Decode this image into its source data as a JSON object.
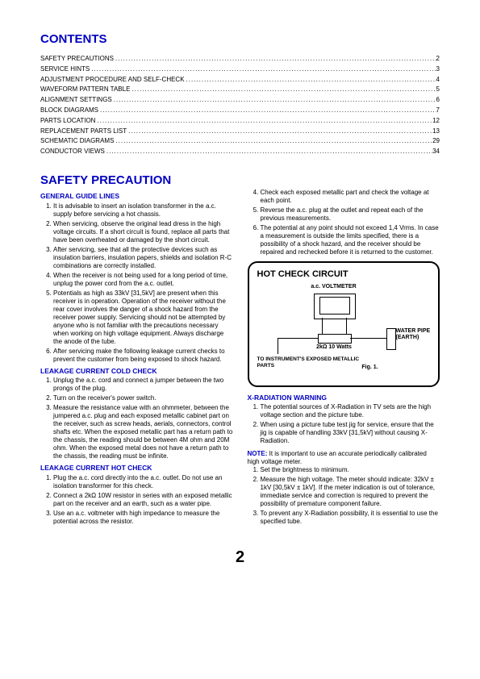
{
  "contents_heading": "CONTENTS",
  "toc": [
    {
      "label": "SAFETY PRECAUTIONS",
      "page": "2"
    },
    {
      "label": "SERVICE HINTS",
      "page": "3"
    },
    {
      "label": "ADJUSTMENT PROCEDURE AND SELF-CHECK",
      "page": "4"
    },
    {
      "label": "WAVEFORM PATTERN TABLE",
      "page": "5"
    },
    {
      "label": "ALIGNMENT SETTINGS",
      "page": "6"
    },
    {
      "label": "BLOCK DIAGRAMS",
      "page": "7"
    },
    {
      "label": "PARTS LOCATION",
      "page": "12"
    },
    {
      "label": "REPLACEMENT PARTS LIST",
      "page": "13"
    },
    {
      "label": "SCHEMATIC DIAGRAMS",
      "page": "29"
    },
    {
      "label": "CONDUCTOR VIEWS",
      "page": "34"
    }
  ],
  "safety_heading": "SAFETY PRECAUTION",
  "general_guide_heading": "GENERAL GUIDE LINES",
  "general_left": [
    "It is advisable to insert an isolation transformer in the a.c. supply before servicing a hot chassis.",
    "When servicing, observe the original lead dress in the high voltage circuits. If a short circuit is found, replace all parts that have been overheated or damaged by the short circuit.",
    "After servicing, see that all the protective devices such as insulation barriers, insulation papers, shields and isolation R-C combinations are correctly installed.",
    "When the receiver is not being used for a long period of time, unplug the power cord from the a.c. outlet.",
    "Potentials as high as 33kV [31,5kV] are present when this receiver is in operation. Operation of the receiver without the rear cover involves the danger of a shock hazard from the receiver power supply. Servicing should not be attempted by anyone who is not familiar with the precautions necessary when working on high voltage equipment. Always discharge the anode of the tube.",
    "After servicing make the following leakage current checks to prevent the customer from being exposed to shock hazard."
  ],
  "cold_heading": "LEAKAGE CURRENT COLD CHECK",
  "cold_list": [
    "Unplug the a.c. cord and connect a jumper between the two prongs of the plug.",
    "Turn on the receiver's power switch.",
    "Measure the resistance value with an ohmmeter, between the jumpered a.c. plug and each exposed metallic cabinet part on the receiver, such as screw heads, aerials, connectors, control shafts etc. When the exposed metallic part has a return path to the chassis, the reading should be between 4M ohm and 20M ohm. When the exposed metal does not have a return path to the chassis, the reading must be infinite."
  ],
  "hot_heading": "LEAKAGE CURRENT HOT CHECK",
  "hot_list": [
    "Plug the a.c. cord directly into the a.c. outlet. Do not use an isolation transformer for this check.",
    "Connect a 2kΩ 10W resistor in series with an exposed metallic part on the receiver and an earth, such as a water pipe.",
    "Use an a.c. voltmeter with high impedance to measure the potential across the resistor."
  ],
  "general_right": [
    "Check each exposed metallic part and check the voltage at each point.",
    "Reverse the a.c. plug at the outlet and repeat each of the previous measurements.",
    "The potential at any point should not exceed 1,4 Vrms. In case a measurement is outside the limits specified, there is a possibility of a shock hazard, and the receiver should be repaired and rechecked before it is returned to the customer."
  ],
  "general_right_start": 4,
  "circuit": {
    "title": "HOT CHECK CIRCUIT",
    "voltmeter": "a.c. VOLTMETER",
    "resistor": "2kΩ 10 Watts",
    "water": "WATER PIPE (EARTH)",
    "instruments": "TO INSTRUMENT'S EXPOSED METALLIC PARTS",
    "fig": "Fig. 1."
  },
  "xrad_heading": "X-RADIATION WARNING",
  "xrad_list": [
    "The potential sources of X-Radiation in TV sets are the high voltage section and the picture tube.",
    "When using a picture tube test jig for service, ensure that the jig is capable of handling 33kV [31,5kV] without causing X-Radiation."
  ],
  "note_label": "NOTE:",
  "note_text": " It is important to use an accurate periodically calibrated high voltage meter.",
  "note_list": [
    "Set the brightness to minimum.",
    "Measure the high voltage. The meter should indicate: 32kV ± 1kV   [30,5kV ± 1kV]. If the meter indication is out of tolerance, immediate service and correction is required to prevent the possibility of premature component failure.",
    "To prevent any X-Radiation possibility, it is essential to use the specified tube."
  ],
  "page_number": "2"
}
